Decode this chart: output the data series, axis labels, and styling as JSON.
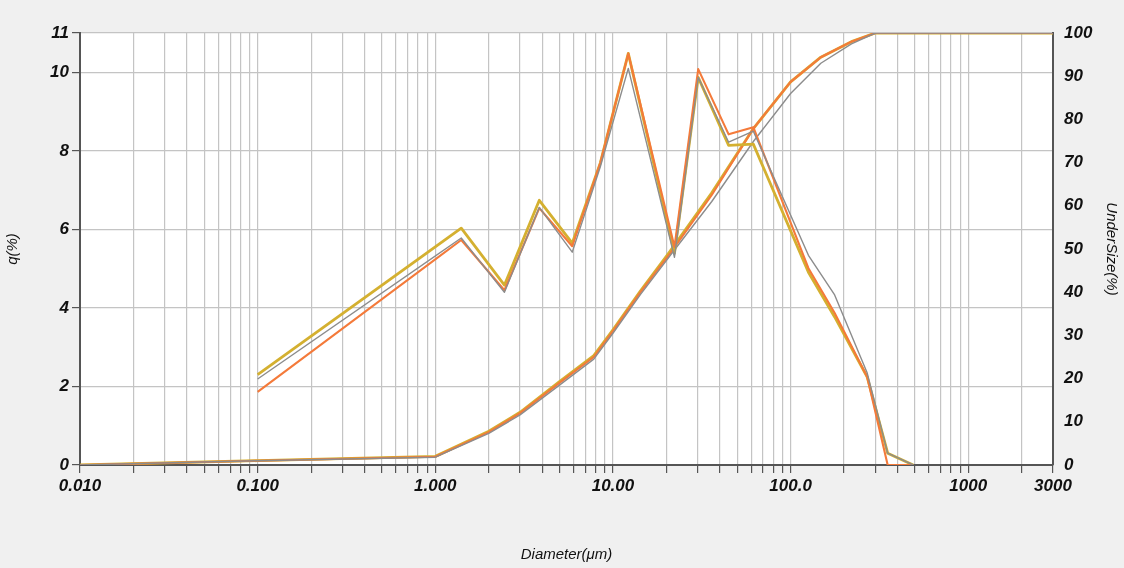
{
  "chart_data": {
    "type": "line",
    "xlabel": "Diameter(μm)",
    "ylabel": "q(%)",
    "y2label": "UnderSize(%)",
    "log": "x",
    "grid": true,
    "marker": "none",
    "line_style": "solid",
    "xlim": [
      0.01,
      3000
    ],
    "xticks": [
      {
        "value": 0.01,
        "label": "0.010"
      },
      {
        "value": 0.02,
        "label": null
      },
      {
        "value": 0.03,
        "label": null
      },
      {
        "value": 0.04,
        "label": null
      },
      {
        "value": 0.05,
        "label": null
      },
      {
        "value": 0.06,
        "label": null
      },
      {
        "value": 0.07,
        "label": null
      },
      {
        "value": 0.08,
        "label": null
      },
      {
        "value": 0.09,
        "label": null
      },
      {
        "value": 0.1,
        "label": "0.100"
      },
      {
        "value": 0.2,
        "label": null
      },
      {
        "value": 0.3,
        "label": null
      },
      {
        "value": 0.4,
        "label": null
      },
      {
        "value": 0.5,
        "label": null
      },
      {
        "value": 0.6,
        "label": null
      },
      {
        "value": 0.7,
        "label": null
      },
      {
        "value": 0.8,
        "label": null
      },
      {
        "value": 0.9,
        "label": null
      },
      {
        "value": 1,
        "label": "1.000"
      },
      {
        "value": 2,
        "label": null
      },
      {
        "value": 3,
        "label": null
      },
      {
        "value": 4,
        "label": null
      },
      {
        "value": 5,
        "label": null
      },
      {
        "value": 6,
        "label": null
      },
      {
        "value": 7,
        "label": null
      },
      {
        "value": 8,
        "label": null
      },
      {
        "value": 9,
        "label": null
      },
      {
        "value": 10,
        "label": "10.00"
      },
      {
        "value": 20,
        "label": null
      },
      {
        "value": 30,
        "label": null
      },
      {
        "value": 40,
        "label": null
      },
      {
        "value": 50,
        "label": null
      },
      {
        "value": 60,
        "label": null
      },
      {
        "value": 70,
        "label": null
      },
      {
        "value": 80,
        "label": null
      },
      {
        "value": 90,
        "label": null
      },
      {
        "value": 100,
        "label": "100.0"
      },
      {
        "value": 200,
        "label": null
      },
      {
        "value": 300,
        "label": null
      },
      {
        "value": 400,
        "label": null
      },
      {
        "value": 500,
        "label": null
      },
      {
        "value": 600,
        "label": null
      },
      {
        "value": 700,
        "label": null
      },
      {
        "value": 800,
        "label": null
      },
      {
        "value": 900,
        "label": null
      },
      {
        "value": 1000,
        "label": "1000"
      },
      {
        "value": 2000,
        "label": null
      },
      3000
    ],
    "ylim": [
      0,
      11
    ],
    "yticks": [
      0,
      2,
      4,
      6,
      8,
      10,
      11
    ],
    "y2lim": [
      0,
      100
    ],
    "y2ticks": [
      0,
      10,
      20,
      30,
      40,
      50,
      60,
      70,
      80,
      90,
      100
    ],
    "series": [
      {
        "color": "#8c8c8c",
        "x": [
          0.1,
          1.4,
          2.45,
          3.85,
          5.9,
          8.5,
          12.2,
          22.2,
          30.2,
          44.8,
          61.7,
          126,
          177,
          270,
          352,
          490
        ],
        "values": [
          2.19,
          5.78,
          4.4,
          6.56,
          5.42,
          7.6,
          10.1,
          5.29,
          9.87,
          8.22,
          8.5,
          5.34,
          4.33,
          2.34,
          0.3,
          0
        ]
      },
      {
        "color": "#f47a3a",
        "x": [
          0.1,
          1.4,
          2.45,
          3.85,
          5.9,
          8.5,
          12.2,
          22.2,
          30.2,
          44.8,
          61.7,
          126,
          177,
          270,
          352,
          490
        ],
        "values": [
          1.86,
          5.73,
          4.45,
          6.54,
          5.57,
          7.7,
          10.48,
          5.55,
          10.08,
          8.42,
          8.6,
          5.01,
          3.87,
          2.24,
          0,
          0
        ]
      },
      {
        "color": "#d4b030",
        "x": [
          0.1,
          1.4,
          2.45,
          3.85,
          5.9,
          8.5,
          12.2,
          22.2,
          30.2,
          44.8,
          61.7,
          126,
          177,
          270,
          352,
          490
        ],
        "values": [
          2.3,
          6.03,
          4.58,
          6.74,
          5.65,
          7.7,
          10.48,
          5.39,
          9.87,
          8.14,
          8.17,
          4.91,
          3.77,
          2.24,
          0.3,
          0
        ]
      },
      {
        "color": "#8c8c8c",
        "axis": "y2",
        "x": [
          0.01,
          0.1,
          1,
          2,
          3,
          5,
          7.8,
          10,
          14.3,
          21,
          36,
          62,
          100,
          148,
          220,
          300,
          3000
        ],
        "values": [
          0,
          1,
          1.8,
          7.3,
          11.6,
          18.5,
          24.5,
          30.5,
          39.5,
          48.5,
          61,
          75,
          86,
          93,
          97.5,
          100,
          100
        ]
      },
      {
        "color": "#f47a3a",
        "axis": "y2",
        "x": [
          0.01,
          0.1,
          1,
          2,
          3,
          5,
          7.8,
          10,
          14.3,
          21,
          36,
          62,
          100,
          148,
          220,
          300,
          3000
        ],
        "values": [
          0,
          1,
          1.9,
          7.6,
          12,
          19,
          25,
          31,
          40,
          49,
          62.5,
          78,
          88.7,
          94.4,
          98,
          100,
          100
        ]
      },
      {
        "color": "#d4b030",
        "axis": "y2",
        "x": [
          0.01,
          0.1,
          1,
          2,
          3,
          5,
          7.8,
          10,
          14.3,
          21,
          36,
          62,
          100,
          148,
          220,
          300,
          3000
        ],
        "values": [
          0,
          1,
          2,
          7.8,
          12.2,
          19.3,
          25.3,
          31.3,
          40.3,
          49.5,
          63,
          78,
          88.7,
          94.4,
          98,
          100,
          100
        ]
      }
    ]
  }
}
